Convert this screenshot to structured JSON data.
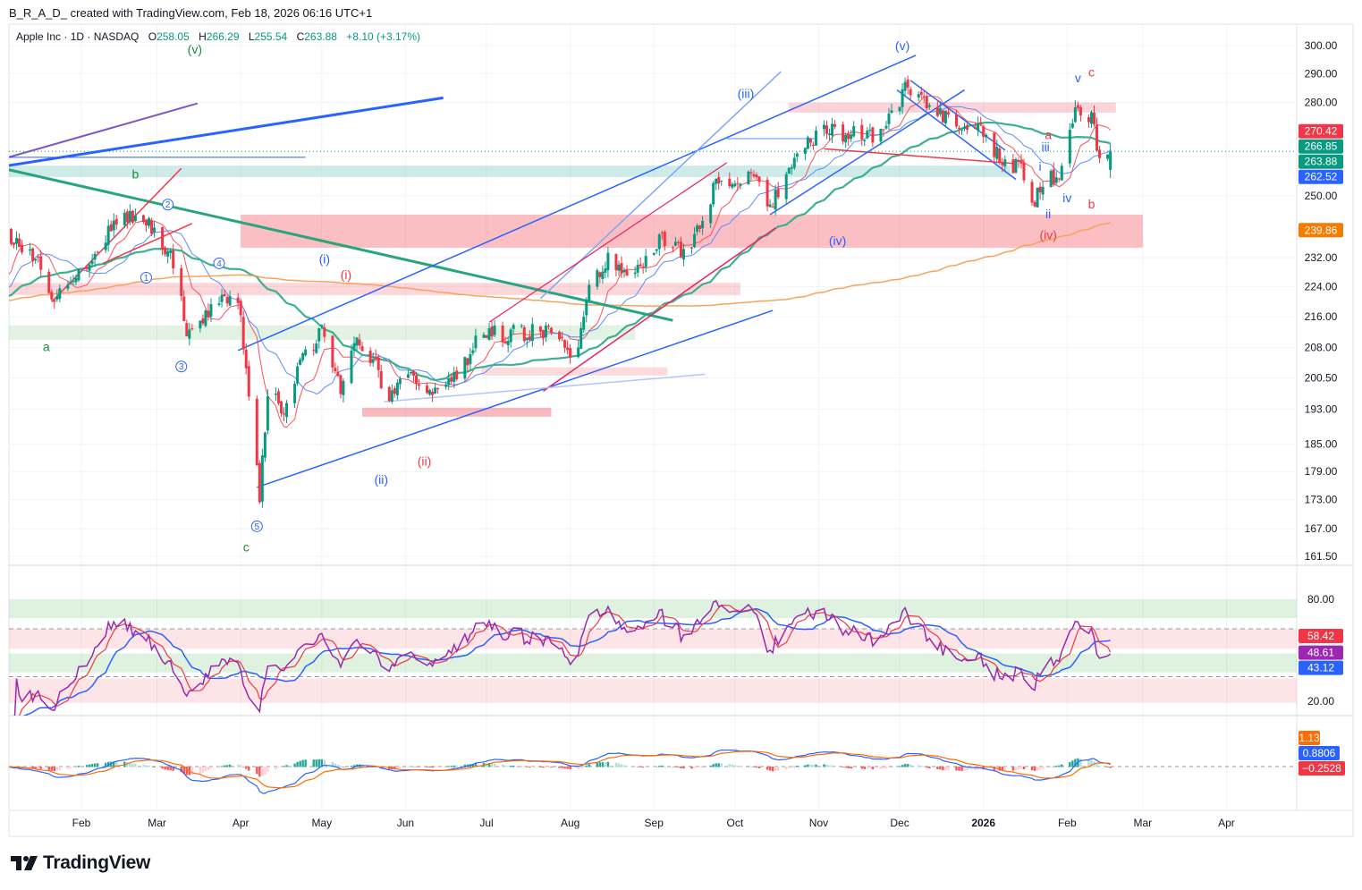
{
  "attribution": "B_R_A_D_ created with TradingView.com, Feb 18, 2026 06:16 UTC+1",
  "legend": {
    "symbol": "Apple Inc · 1D · NASDAQ",
    "o_label": "O",
    "open": "258.05",
    "h_label": "H",
    "high": "266.29",
    "l_label": "L",
    "low": "255.54",
    "c_label": "C",
    "close": "263.88",
    "change": "+8.10 (+3.17%)"
  },
  "price_axis": {
    "ticks": [
      {
        "value": 300,
        "label": "300.00"
      },
      {
        "value": 290,
        "label": "290.00"
      },
      {
        "value": 280,
        "label": "280.00"
      },
      {
        "value": 250,
        "label": "250.00"
      },
      {
        "value": 232,
        "label": "232.00"
      },
      {
        "value": 224,
        "label": "224.00"
      },
      {
        "value": 216,
        "label": "216.00"
      },
      {
        "value": 208,
        "label": "208.00"
      },
      {
        "value": 200.5,
        "label": "200.50"
      },
      {
        "value": 193,
        "label": "193.00"
      },
      {
        "value": 185,
        "label": "185.00"
      },
      {
        "value": 179,
        "label": "179.00"
      },
      {
        "value": 173,
        "label": "173.00"
      },
      {
        "value": 167,
        "label": "167.00"
      },
      {
        "value": 161.5,
        "label": "161.50"
      }
    ],
    "price_labels": [
      {
        "value": 270.42,
        "label": "270.42",
        "color": "#f23645"
      },
      {
        "value": 266.85,
        "label": "266.85",
        "color": "#089981"
      },
      {
        "value": 263.88,
        "label": "263.88",
        "color": "#089981"
      },
      {
        "value": 262.52,
        "label": "262.52",
        "color": "#2962ff"
      },
      {
        "value": 239.86,
        "label": "239.86",
        "color": "#f57c00"
      }
    ]
  },
  "rsi_axis": {
    "ticks": [
      {
        "value": 80,
        "label": "80.00"
      },
      {
        "value": 20,
        "label": "20.00"
      }
    ],
    "labels": [
      {
        "value": 58.42,
        "label": "58.42",
        "color": "#f23645"
      },
      {
        "value": 48.61,
        "label": "48.61",
        "color": "#9c27b0"
      },
      {
        "value": 43.12,
        "label": "43.12",
        "color": "#2962ff"
      }
    ]
  },
  "macd_axis": {
    "labels": [
      {
        "label": "1.13",
        "color": "#ff6d00"
      },
      {
        "label": "0.8806",
        "color": "#2962ff"
      },
      {
        "label": "−0.2528",
        "color": "#f23645"
      }
    ]
  },
  "time_axis": [
    {
      "label": "Feb",
      "date": "2025-02-01"
    },
    {
      "label": "Mar",
      "date": "2025-03-01"
    },
    {
      "label": "Apr",
      "date": "2025-04-01"
    },
    {
      "label": "May",
      "date": "2025-05-01"
    },
    {
      "label": "Jun",
      "date": "2025-06-01"
    },
    {
      "label": "Jul",
      "date": "2025-07-01"
    },
    {
      "label": "Aug",
      "date": "2025-08-01"
    },
    {
      "label": "Sep",
      "date": "2025-09-01"
    },
    {
      "label": "Oct",
      "date": "2025-10-01"
    },
    {
      "label": "Nov",
      "date": "2025-11-01"
    },
    {
      "label": "Dec",
      "date": "2025-12-01"
    },
    {
      "label": "2026",
      "date": "2026-01-01",
      "bold": true
    },
    {
      "label": "Feb",
      "date": "2026-02-01"
    },
    {
      "label": "Mar",
      "date": "2026-03-01"
    },
    {
      "label": "Apr",
      "date": "2026-04-01"
    }
  ],
  "colors": {
    "up": "#089981",
    "down": "#f23645",
    "grid": "#f0f3fa",
    "axis_text": "#131722"
  },
  "chart_data": {
    "type": "candlestick",
    "title": "Apple Inc · 1D · NASDAQ",
    "scale": "log",
    "ylim": [
      161.5,
      300
    ],
    "xlim": [
      "2025-01-02",
      "2026-04-15"
    ],
    "keypoints": [
      [
        "2025-01-02",
        238.0
      ],
      [
        "2025-01-15",
        232.7
      ],
      [
        "2025-01-20",
        220.5
      ],
      [
        "2025-02-01",
        229.0
      ],
      [
        "2025-02-14",
        241.8
      ],
      [
        "2025-02-22",
        245.7
      ],
      [
        "2025-03-01",
        238.0
      ],
      [
        "2025-03-09",
        229.0
      ],
      [
        "2025-03-12",
        211.1
      ],
      [
        "2025-03-22",
        219.3
      ],
      [
        "2025-03-31",
        221.7
      ],
      [
        "2025-04-03",
        203.3
      ],
      [
        "2025-04-08",
        172.7
      ],
      [
        "2025-04-11",
        196.7
      ],
      [
        "2025-04-18",
        192.5
      ],
      [
        "2025-04-24",
        205.5
      ],
      [
        "2025-05-01",
        212.3
      ],
      [
        "2025-05-08",
        196.7
      ],
      [
        "2025-05-14",
        210.0
      ],
      [
        "2025-05-21",
        203.3
      ],
      [
        "2025-05-24",
        194.6
      ],
      [
        "2025-06-03",
        201.1
      ],
      [
        "2025-06-13",
        196.7
      ],
      [
        "2025-06-20",
        201.1
      ],
      [
        "2025-06-30",
        212.3
      ],
      [
        "2025-07-06",
        211.1
      ],
      [
        "2025-07-20",
        212.3
      ],
      [
        "2025-07-29",
        210.0
      ],
      [
        "2025-08-02",
        203.3
      ],
      [
        "2025-08-08",
        224.1
      ],
      [
        "2025-08-15",
        231.5
      ],
      [
        "2025-08-22",
        229.0
      ],
      [
        "2025-08-28",
        231.5
      ],
      [
        "2025-09-04",
        238.0
      ],
      [
        "2025-09-09",
        235.3
      ],
      [
        "2025-09-14",
        231.5
      ],
      [
        "2025-09-20",
        245.7
      ],
      [
        "2025-09-24",
        253.9
      ],
      [
        "2025-10-07",
        256.6
      ],
      [
        "2025-10-14",
        247.1
      ],
      [
        "2025-10-20",
        255.2
      ],
      [
        "2025-10-27",
        265.1
      ],
      [
        "2025-11-03",
        272.4
      ],
      [
        "2025-11-09",
        269.5
      ],
      [
        "2025-11-22",
        269.5
      ],
      [
        "2025-11-29",
        278.4
      ],
      [
        "2025-12-04",
        286.0
      ],
      [
        "2025-12-12",
        276.9
      ],
      [
        "2025-12-22",
        272.4
      ],
      [
        "2026-01-01",
        270.9
      ],
      [
        "2026-01-08",
        259.4
      ],
      [
        "2026-01-14",
        259.4
      ],
      [
        "2026-01-19",
        248.4
      ],
      [
        "2026-01-24",
        253.9
      ],
      [
        "2026-01-29",
        256.6
      ],
      [
        "2026-02-02",
        269.5
      ],
      [
        "2026-02-05",
        278.4
      ],
      [
        "2026-02-10",
        275.4
      ],
      [
        "2026-02-13",
        260.8
      ],
      [
        "2026-02-17",
        263.88
      ]
    ],
    "last_bar": {
      "open": 258.05,
      "high": 266.29,
      "low": 255.54,
      "close": 263.88
    },
    "moving_averages": [
      {
        "period": 10,
        "color": "#f7525f",
        "width": 1
      },
      {
        "period": 20,
        "color": "#5b8cff",
        "width": 1
      },
      {
        "period": 50,
        "color": "#3cb08f",
        "width": 2.2
      },
      {
        "period": 200,
        "color": "#f7a35c",
        "width": 1.5
      }
    ],
    "zones": [
      {
        "from": "2025-04-01",
        "to": "2026-03-01",
        "p1": 244.4,
        "p2": 234.8,
        "color": "rgba(242,54,69,0.32)"
      },
      {
        "from": "2025-01-02",
        "to": "2026-01-11",
        "p1": 259.4,
        "p2": 255.8,
        "color": "rgba(38,166,154,0.22)"
      },
      {
        "from": "2025-10-21",
        "to": "2026-02-19",
        "p1": 280.0,
        "p2": 276.6,
        "color": "rgba(242,54,69,0.22)"
      },
      {
        "from": "2025-01-02",
        "to": "2025-10-03",
        "p1": 225.0,
        "p2": 221.7,
        "color": "rgba(242,54,69,0.2)"
      },
      {
        "from": "2025-01-02",
        "to": "2025-08-25",
        "p1": 213.7,
        "p2": 210.0,
        "color": "rgba(76,175,80,0.16)"
      },
      {
        "from": "2025-06-29",
        "to": "2025-09-06",
        "p1": 203.1,
        "p2": 201.1,
        "color": "rgba(242,54,69,0.18)"
      },
      {
        "from": "2025-05-16",
        "to": "2025-07-25",
        "p1": 193.4,
        "p2": 191.3,
        "color": "rgba(242,54,69,0.35)"
      }
    ],
    "trendlines": [
      {
        "from": [
          "2025-01-05",
          259.4
        ],
        "to": [
          "2025-06-15",
          281.6
        ],
        "color": "#2962ff",
        "width": 3
      },
      {
        "from": [
          "2025-01-05",
          262.0
        ],
        "to": [
          "2025-03-16",
          279.7
        ],
        "color": "#7e57c2",
        "width": 2
      },
      {
        "from": [
          "2025-01-05",
          258.1
        ],
        "to": [
          "2025-09-08",
          215.0
        ],
        "color": "#26a67f",
        "width": 3
      },
      {
        "from": [
          "2025-03-31",
          207.3
        ],
        "to": [
          "2025-12-07",
          296.5
        ],
        "color": "#2962ff",
        "width": 1.5
      },
      {
        "from": [
          "2025-04-07",
          175.6
        ],
        "to": [
          "2025-10-15",
          217.6
        ],
        "color": "#2962ff",
        "width": 1.5
      },
      {
        "from": [
          "2025-07-21",
          220.8
        ],
        "to": [
          "2025-10-18",
          290.7
        ],
        "color": "#7ea6f7",
        "width": 1.5
      },
      {
        "from": [
          "2025-07-22",
          197.3
        ],
        "to": [
          "2025-10-16",
          240.5
        ],
        "color": "#e91e63",
        "width": 1.5
      },
      {
        "from": [
          "2025-07-02",
          214.5
        ],
        "to": [
          "2025-09-28",
          260.3
        ],
        "color": "#e91e63",
        "width": 1.2
      },
      {
        "from": [
          "2025-11-30",
          284.3
        ],
        "to": [
          "2026-01-13",
          255.1
        ],
        "color": "#2962ff",
        "width": 1.5
      },
      {
        "from": [
          "2025-12-05",
          287.6
        ],
        "to": [
          "2026-01-09",
          264.3
        ],
        "color": "#2962ff",
        "width": 1.5
      },
      {
        "from": [
          "2025-11-03",
          264.7
        ],
        "to": [
          "2026-01-13",
          260.0
        ],
        "color": "#f23645",
        "width": 1.5
      },
      {
        "from": [
          "2025-10-14",
          244.4
        ],
        "to": [
          "2025-12-25",
          284.3
        ],
        "color": "#2962ff",
        "width": 1.5
      },
      {
        "from": [
          "2025-01-21",
          219.9
        ],
        "to": [
          "2025-03-10",
          258.5
        ],
        "color": "#f23645",
        "width": 1.5
      },
      {
        "from": [
          "2025-02-09",
          230.4
        ],
        "to": [
          "2025-03-14",
          241.8
        ],
        "color": "#f23645",
        "width": 1.5
      },
      {
        "from": [
          "2025-05-24",
          194.8
        ],
        "to": [
          "2025-09-20",
          201.4
        ],
        "color": "#b3c6f7",
        "width": 1.5
      },
      {
        "from": [
          "2025-01-02",
          262.0
        ],
        "to": [
          "2025-04-25",
          262.0
        ],
        "color": "#2962ff",
        "width": 1
      },
      {
        "from": [
          "2025-09-28",
          268.0
        ],
        "to": [
          "2025-10-31",
          268.0
        ],
        "color": "#7ea6f7",
        "width": 1.2
      }
    ],
    "annotations": [
      {
        "text": "(v)",
        "date": "2025-03-15",
        "price": 297.1,
        "color": "#1b8e3c"
      },
      {
        "text": "b",
        "date": "2025-02-21",
        "price": 255.4,
        "color": "#1b8e3c"
      },
      {
        "text": "a",
        "date": "2025-01-19",
        "price": 207.1,
        "color": "#1b8e3c"
      },
      {
        "text": "c",
        "date": "2025-04-03",
        "price": 162.5,
        "color": "#1b8e3c"
      },
      {
        "text": "(i)",
        "date": "2025-05-02",
        "price": 230.4,
        "color": "#2962ff"
      },
      {
        "text": "(i)",
        "date": "2025-05-10",
        "price": 226.0,
        "color": "#f23645"
      },
      {
        "text": "(ii)",
        "date": "2025-05-23",
        "price": 176.3,
        "color": "#2962ff"
      },
      {
        "text": "(ii)",
        "date": "2025-06-08",
        "price": 180.3,
        "color": "#f23645"
      },
      {
        "text": "(iii)",
        "date": "2025-10-05",
        "price": 281.6,
        "color": "#2962ff"
      },
      {
        "text": "(iv)",
        "date": "2025-11-08",
        "price": 235.6,
        "color": "#2962ff"
      },
      {
        "text": "(v)",
        "date": "2025-12-02",
        "price": 298.4,
        "color": "#2962ff"
      },
      {
        "text": "(iv)",
        "date": "2026-01-25",
        "price": 237.2,
        "color": "#f23645"
      },
      {
        "text": "v",
        "date": "2026-02-05",
        "price": 287.0,
        "color": "#2962ff"
      },
      {
        "text": "c",
        "date": "2026-02-10",
        "price": 289.0,
        "color": "#f23645"
      },
      {
        "text": "a",
        "date": "2026-01-25",
        "price": 267.9,
        "color": "#f23645"
      },
      {
        "text": "iii",
        "date": "2026-01-24",
        "price": 264.0,
        "color": "#2962ff"
      },
      {
        "text": "i",
        "date": "2026-01-22",
        "price": 257.7,
        "color": "#2962ff"
      },
      {
        "text": "iv",
        "date": "2026-02-01",
        "price": 248.1,
        "color": "#2962ff"
      },
      {
        "text": "ii",
        "date": "2026-01-25",
        "price": 243.3,
        "color": "#2962ff"
      },
      {
        "text": "b",
        "date": "2026-02-10",
        "price": 246.2,
        "color": "#f23645"
      }
    ],
    "circled_labels": [
      {
        "text": "1",
        "date": "2025-02-25",
        "price": 226.4
      },
      {
        "text": "2",
        "date": "2025-03-05",
        "price": 247.4
      },
      {
        "text": "3",
        "date": "2025-03-10",
        "price": 203.3
      },
      {
        "text": "4",
        "date": "2025-03-24",
        "price": 230.4
      },
      {
        "text": "5",
        "date": "2025-04-07",
        "price": 167.5
      }
    ],
    "rsi": {
      "period": 14,
      "upper": 80,
      "lower": 20,
      "bands": [
        [
          80,
          69
        ],
        [
          62.6,
          51
        ],
        [
          48,
          37
        ],
        [
          33.5,
          19
        ]
      ]
    },
    "macd": {
      "fast": 12,
      "slow": 26,
      "signal": 9
    }
  },
  "footer": {
    "logo_text": "TradingView"
  }
}
